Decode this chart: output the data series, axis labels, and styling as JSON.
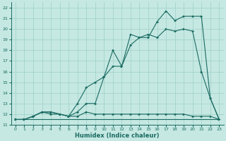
{
  "xlabel": "Humidex (Indice chaleur)",
  "bg_color": "#c5e8e2",
  "grid_color": "#9ecfc8",
  "line_color": "#1a6b62",
  "xlim": [
    -0.5,
    23.5
  ],
  "ylim": [
    11.0,
    22.5
  ],
  "xticks": [
    0,
    1,
    2,
    3,
    4,
    5,
    6,
    7,
    8,
    9,
    10,
    11,
    12,
    13,
    14,
    15,
    16,
    17,
    18,
    19,
    20,
    21,
    22,
    23
  ],
  "yticks": [
    11,
    12,
    13,
    14,
    15,
    16,
    17,
    18,
    19,
    20,
    21,
    22
  ],
  "series": [
    {
      "x": [
        0,
        1,
        2,
        3,
        4,
        5,
        6,
        7,
        8,
        9,
        10,
        11,
        12,
        13,
        14,
        15,
        16,
        17,
        18,
        19,
        20,
        21,
        22,
        23
      ],
      "y": [
        11.5,
        11.5,
        11.5,
        11.5,
        11.5,
        11.5,
        11.5,
        11.5,
        11.5,
        11.5,
        11.5,
        11.5,
        11.5,
        11.5,
        11.5,
        11.5,
        11.5,
        11.5,
        11.5,
        11.5,
        11.5,
        11.5,
        11.5,
        11.5
      ],
      "marker": false
    },
    {
      "x": [
        0,
        1,
        2,
        3,
        4,
        5,
        6,
        7,
        8,
        9,
        10,
        11,
        12,
        13,
        14,
        15,
        16,
        17,
        18,
        19,
        20,
        21,
        22,
        23
      ],
      "y": [
        11.5,
        11.5,
        11.8,
        12.2,
        12.0,
        12.0,
        11.8,
        11.8,
        12.2,
        12.0,
        12.0,
        12.0,
        12.0,
        12.0,
        12.0,
        12.0,
        12.0,
        12.0,
        12.0,
        12.0,
        11.8,
        11.8,
        11.8,
        11.5
      ],
      "marker": true
    },
    {
      "x": [
        0,
        1,
        2,
        3,
        4,
        5,
        6,
        7,
        8,
        9,
        10,
        11,
        12,
        13,
        14,
        15,
        16,
        17,
        18,
        19,
        20,
        21,
        22,
        23
      ],
      "y": [
        11.5,
        11.5,
        11.8,
        12.2,
        12.2,
        12.0,
        11.8,
        13.0,
        14.5,
        15.0,
        15.5,
        16.5,
        16.5,
        18.5,
        19.2,
        19.5,
        19.2,
        20.0,
        19.8,
        20.0,
        19.8,
        16.0,
        13.5,
        11.5
      ],
      "marker": true
    },
    {
      "x": [
        0,
        1,
        2,
        3,
        4,
        5,
        6,
        7,
        8,
        9,
        10,
        11,
        12,
        13,
        14,
        15,
        16,
        17,
        18,
        19,
        20,
        21,
        22,
        23
      ],
      "y": [
        11.5,
        11.5,
        11.8,
        12.2,
        12.2,
        12.0,
        11.8,
        12.2,
        13.0,
        13.0,
        15.5,
        18.0,
        16.5,
        19.5,
        19.2,
        19.2,
        20.7,
        21.7,
        20.8,
        21.2,
        21.2,
        21.2,
        13.5,
        11.5
      ],
      "marker": true
    }
  ]
}
